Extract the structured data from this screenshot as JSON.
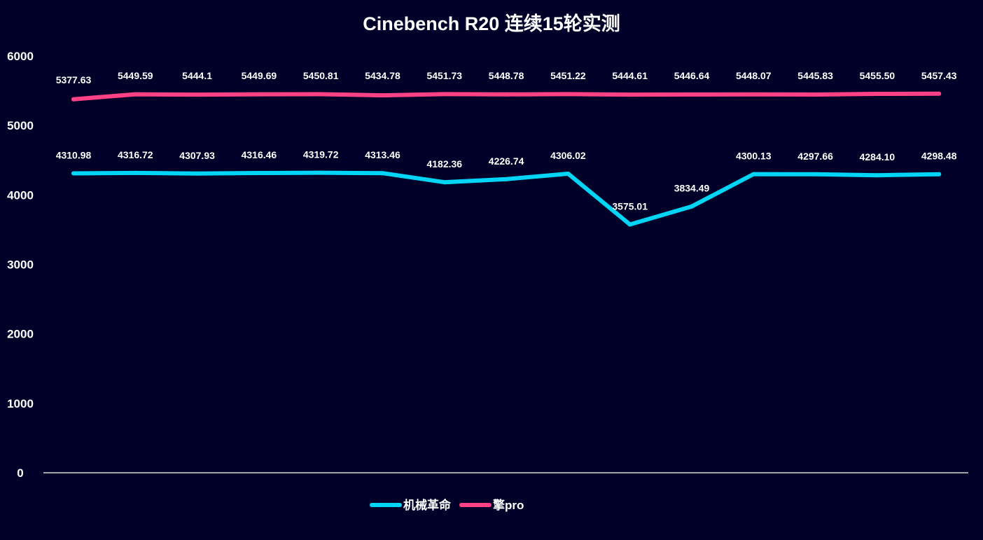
{
  "chart_data": {
    "type": "line",
    "title": "Cinebench R20 连续15轮实测",
    "xlabel": "",
    "ylabel": "",
    "ylim": [
      0,
      6000
    ],
    "yticks": [
      "0",
      "1000",
      "2000",
      "3000",
      "4000",
      "5000",
      "6000"
    ],
    "x": [
      1,
      2,
      3,
      4,
      5,
      6,
      7,
      8,
      9,
      10,
      11,
      12,
      13,
      14,
      15
    ],
    "grid": false,
    "legend_position": "bottom",
    "series": [
      {
        "name": "机械革命",
        "color": "#00d5f5",
        "values": [
          4310.98,
          4316.72,
          4307.93,
          4316.46,
          4319.72,
          4313.46,
          4182.36,
          4226.74,
          4306.02,
          3575.01,
          3834.49,
          4300.13,
          4297.66,
          4284.1,
          4298.48
        ],
        "labels": [
          "4310.98",
          "4316.72",
          "4307.93",
          "4316.46",
          "4319.72",
          "4313.46",
          "4182.36",
          "4226.74",
          "4306.02",
          "3575.01",
          "3834.49",
          "4300.13",
          "4297.66",
          "4284.10",
          "4298.48"
        ]
      },
      {
        "name": "擎pro",
        "color": "#ff4185",
        "values": [
          5377.63,
          5449.59,
          5444.1,
          5449.69,
          5450.81,
          5434.78,
          5451.73,
          5448.78,
          5451.22,
          5444.61,
          5446.64,
          5448.07,
          5445.83,
          5455.5,
          5457.43
        ],
        "labels": [
          "5377.63",
          "5449.59",
          "5444.1",
          "5449.69",
          "5450.81",
          "5434.78",
          "5451.73",
          "5448.78",
          "5451.22",
          "5444.61",
          "5446.64",
          "5448.07",
          "5445.83",
          "5455.50",
          "5457.43"
        ]
      }
    ]
  }
}
